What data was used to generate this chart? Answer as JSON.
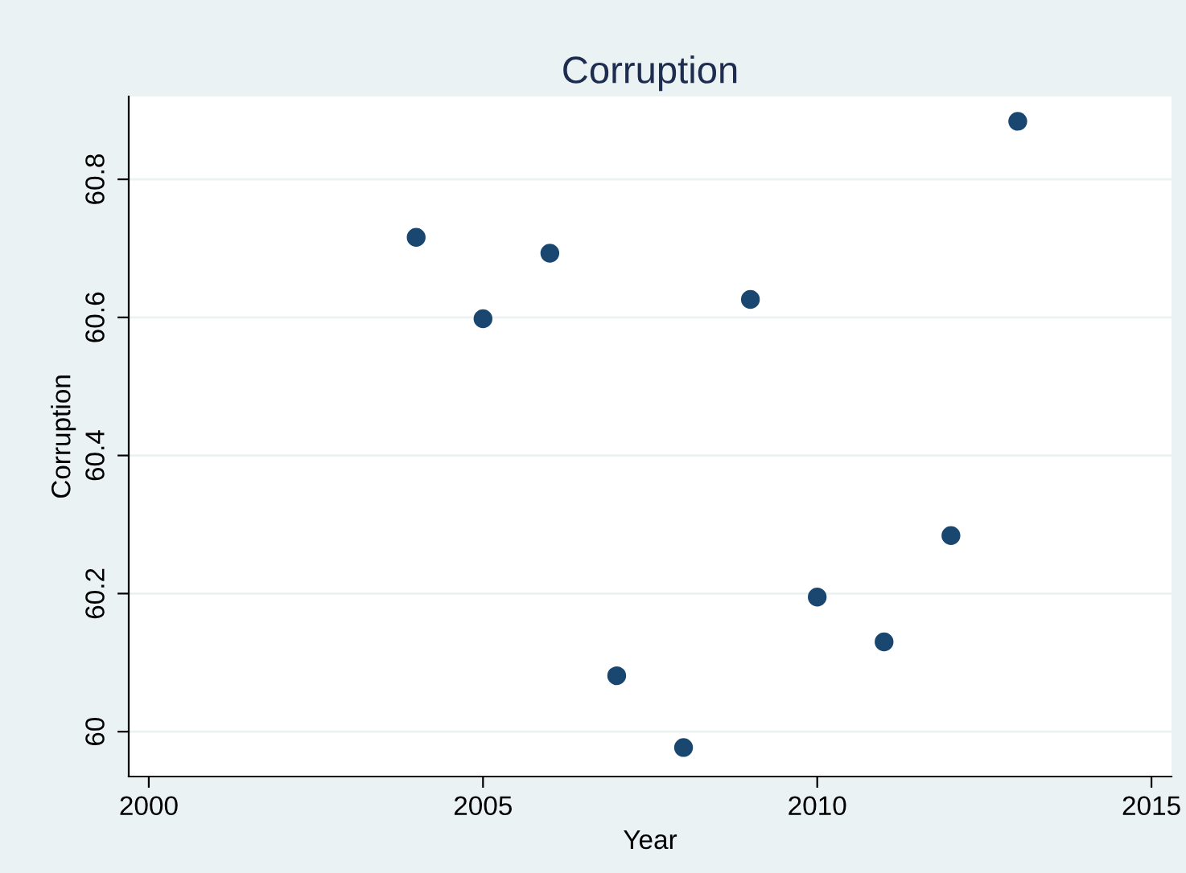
{
  "chart_data": {
    "type": "scatter",
    "title": "Corruption",
    "xlabel": "Year",
    "ylabel": "Corruption",
    "x": [
      2004,
      2005,
      2006,
      2007,
      2008,
      2009,
      2010,
      2011,
      2012,
      2013
    ],
    "series": [
      {
        "color": "#1a476f",
        "values": [
          60.716,
          60.598,
          60.693,
          60.081,
          59.977,
          60.626,
          60.195,
          60.13,
          60.284,
          60.884
        ]
      }
    ],
    "xlim": [
      1999.7,
      2015.3
    ],
    "xticks": [
      2000,
      2005,
      2010,
      2015
    ],
    "ylim": [
      59.935,
      60.92
    ],
    "yticks": [
      60,
      60.2,
      60.4,
      60.6,
      60.8
    ],
    "grid": "y",
    "marker": "circle",
    "legend": false
  }
}
